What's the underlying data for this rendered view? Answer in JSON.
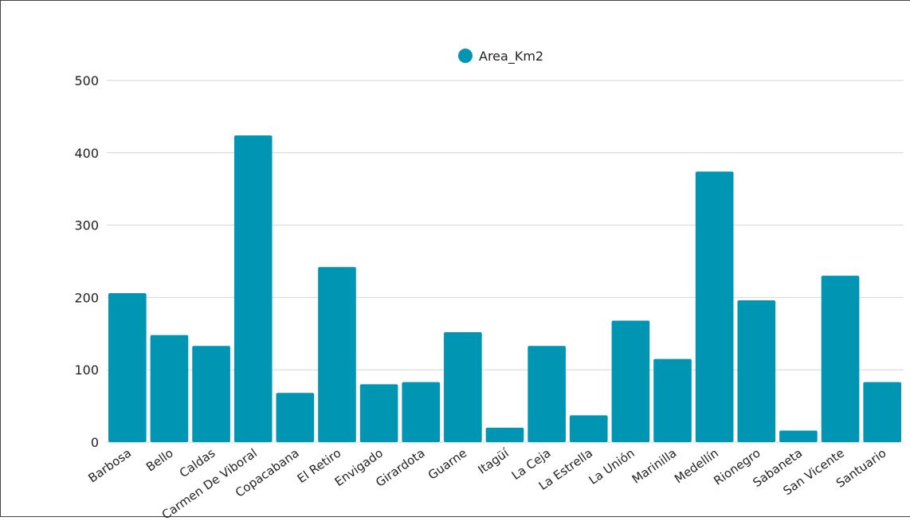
{
  "colors": {
    "bar": "#0095B3",
    "grid": "#d4d4d4",
    "text": "#222222",
    "frame": "#444444"
  },
  "chart_data": {
    "type": "bar",
    "title": "",
    "xlabel": "",
    "ylabel": "",
    "legend": {
      "placement": "top-center"
    },
    "grid": true,
    "ylim": [
      0,
      500
    ],
    "yticks": [
      0,
      100,
      200,
      300,
      400,
      500
    ],
    "categories": [
      "Barbosa",
      "Bello",
      "Caldas",
      "Carmen De Viboral",
      "Copacabana",
      "El Retiro",
      "Envigado",
      "Girardota",
      "Guarne",
      "Itagüí",
      "La Ceja",
      "La Estrella",
      "La Unión",
      "Marinilla",
      "Medellín",
      "Rionegro",
      "Sabaneta",
      "San Vicente",
      "Santuario"
    ],
    "series": [
      {
        "name": "Area_Km2",
        "values": [
          206,
          148,
          133,
          424,
          68,
          242,
          80,
          83,
          152,
          20,
          133,
          37,
          168,
          115,
          374,
          196,
          16,
          230,
          83
        ]
      }
    ]
  }
}
